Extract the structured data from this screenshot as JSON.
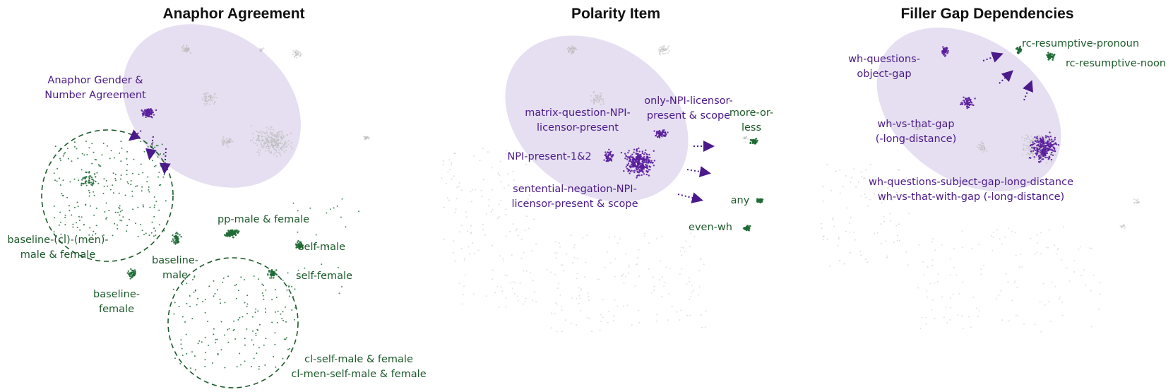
{
  "colors": {
    "purple": "#4b1a8a",
    "purple_points": "#5a1e9c",
    "green": "#1c5a2a",
    "green_points": "#1f6b35",
    "grey_points": "#b9b9b9",
    "ellipse_fill": "#c7b8e0"
  },
  "panels": [
    {
      "title": "Anaphor Agreement",
      "labels": [
        {
          "lines": [
            "Anaphor Gender &",
            "Number Agreement"
          ],
          "color": "purple"
        },
        {
          "lines": [
            "baseline-(cl)-(men)-",
            "male & female"
          ],
          "color": "green"
        },
        {
          "lines": [
            "baseline-",
            "male"
          ],
          "color": "green"
        },
        {
          "lines": [
            "baseline-",
            "female"
          ],
          "color": "green"
        },
        {
          "lines": [
            "pp-male & female"
          ],
          "color": "green"
        },
        {
          "lines": [
            "self-male"
          ],
          "color": "green"
        },
        {
          "lines": [
            "self-female"
          ],
          "color": "green"
        },
        {
          "lines": [
            "cl-self-male & female",
            "cl-men-self-male & female"
          ],
          "color": "green"
        }
      ]
    },
    {
      "title": "Polarity Item",
      "labels": [
        {
          "lines": [
            "matrix-question-NPI-",
            "licensor-present"
          ],
          "color": "purple"
        },
        {
          "lines": [
            "only-NPI-licensor-",
            "present & scope"
          ],
          "color": "purple"
        },
        {
          "lines": [
            "NPI-present-1&2"
          ],
          "color": "purple"
        },
        {
          "lines": [
            "sentential-negation-NPI-",
            "licensor-present & scope"
          ],
          "color": "purple"
        },
        {
          "lines": [
            "more-or-",
            "less"
          ],
          "color": "green"
        },
        {
          "lines": [
            "any"
          ],
          "color": "green"
        },
        {
          "lines": [
            "even-wh"
          ],
          "color": "green"
        }
      ]
    },
    {
      "title": "Filler Gap Dependencies",
      "labels": [
        {
          "lines": [
            "wh-questions-",
            "object-gap"
          ],
          "color": "purple"
        },
        {
          "lines": [
            "wh-vs-that-gap",
            "(-long-distance)"
          ],
          "color": "purple"
        },
        {
          "lines": [
            "wh-questions-subject-gap-long-distance",
            "wh-vs-that-with-gap (-long-distance)"
          ],
          "color": "purple"
        },
        {
          "lines": [
            "rc-resumptive-pronoun"
          ],
          "color": "green"
        },
        {
          "lines": [
            "rc-resumptive-noon"
          ],
          "color": "green"
        }
      ]
    }
  ]
}
